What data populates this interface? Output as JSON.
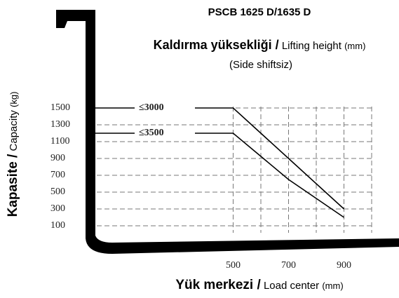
{
  "chart_data": {
    "type": "line",
    "title": "PSCB 1625 D/1635 D",
    "subtitle": {
      "bold": "Kaldırma yüksekliği /",
      "text": "Lifting height",
      "unit": "(mm)"
    },
    "note": "(Side shiftsiz)",
    "x_label": {
      "bold": "Yük merkezi /",
      "text": "Load center",
      "unit": "(mm)"
    },
    "y_label": {
      "bold": "Kapasite /",
      "text": "Capacity",
      "unit": "(kg)"
    },
    "x": [
      0,
      500,
      700,
      900
    ],
    "series": [
      {
        "name": "≤3000",
        "color": "#000000",
        "values": [
          1500,
          1500,
          900,
          300
        ]
      },
      {
        "name": "≤3500",
        "color": "#000000",
        "values": [
          1200,
          1200,
          650,
          200
        ]
      }
    ],
    "xlim": [
      0,
      1000
    ],
    "ylim": [
      0,
      1600
    ],
    "xticks": [
      500,
      700,
      900
    ],
    "xgrid": [
      500,
      600,
      700,
      800,
      900,
      1000
    ],
    "yticks": [
      100,
      300,
      500,
      700,
      900,
      1100,
      1300,
      1500
    ],
    "grid": true
  }
}
